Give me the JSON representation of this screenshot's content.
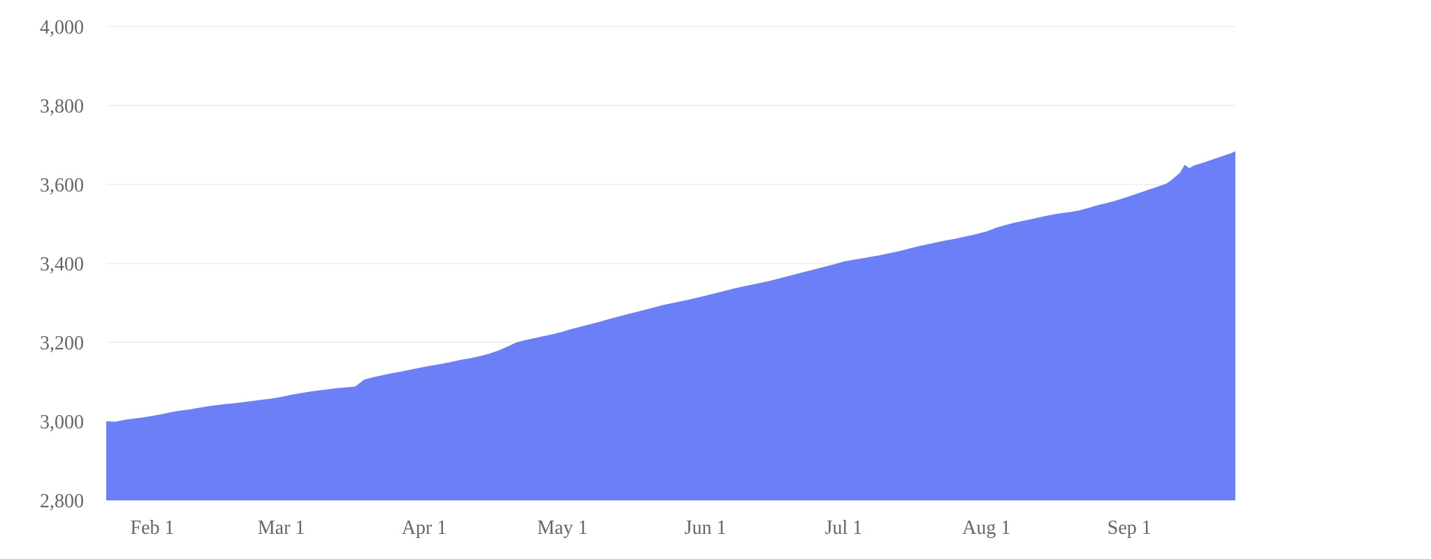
{
  "chart_data": {
    "type": "area",
    "title": "",
    "legend": "none",
    "grid": true,
    "background_color": "#ffffff",
    "colors": {
      "area_fill": "#6b80f6",
      "gridline": "#f2f2f3",
      "tick_text": "#666666"
    },
    "y_axis": {
      "range": [
        2800,
        4000
      ],
      "tick_values": [
        4000,
        3800,
        3600,
        3400,
        3200,
        3000,
        2800
      ],
      "tick_labels": [
        "4,000",
        "3,800",
        "3,600",
        "3,400",
        "3,200",
        "3,000",
        "2,800"
      ]
    },
    "x_axis": {
      "type": "time",
      "total_days": 245,
      "start_label": "Jan 22",
      "end_label": "Sep 24",
      "ticks": [
        {
          "day": 10,
          "label": "Feb 1"
        },
        {
          "day": 38,
          "label": "Mar 1"
        },
        {
          "day": 69,
          "label": "Apr 1"
        },
        {
          "day": 99,
          "label": "May 1"
        },
        {
          "day": 130,
          "label": "Jun 1"
        },
        {
          "day": 160,
          "label": "Jul 1"
        },
        {
          "day": 191,
          "label": "Aug 1"
        },
        {
          "day": 222,
          "label": "Sep 1"
        }
      ]
    },
    "points_format": "[day_offset, date_label, value]",
    "points": [
      [
        0,
        "Jan 22",
        3000
      ],
      [
        2,
        "Jan 24",
        2999
      ],
      [
        4,
        "Jan 26",
        3004
      ],
      [
        6,
        "Jan 28",
        3007
      ],
      [
        8,
        "Jan 30",
        3010
      ],
      [
        10,
        "Feb 1",
        3014
      ],
      [
        12,
        "Feb 3",
        3018
      ],
      [
        14,
        "Feb 5",
        3023
      ],
      [
        16,
        "Feb 7",
        3027
      ],
      [
        18,
        "Feb 9",
        3030
      ],
      [
        20,
        "Feb 11",
        3034
      ],
      [
        22,
        "Feb 13",
        3038
      ],
      [
        24,
        "Feb 15",
        3041
      ],
      [
        26,
        "Feb 17",
        3044
      ],
      [
        28,
        "Feb 19",
        3046
      ],
      [
        30,
        "Feb 21",
        3049
      ],
      [
        32,
        "Feb 23",
        3052
      ],
      [
        34,
        "Feb 25",
        3055
      ],
      [
        36,
        "Feb 27",
        3058
      ],
      [
        38,
        "Mar 1",
        3062
      ],
      [
        40,
        "Mar 3",
        3067
      ],
      [
        42,
        "Mar 5",
        3071
      ],
      [
        44,
        "Mar 7",
        3075
      ],
      [
        46,
        "Mar 9",
        3078
      ],
      [
        48,
        "Mar 11",
        3081
      ],
      [
        50,
        "Mar 13",
        3084
      ],
      [
        52,
        "Mar 15",
        3086
      ],
      [
        54,
        "Mar 17",
        3088
      ],
      [
        55,
        "Mar 18",
        3097
      ],
      [
        56,
        "Mar 19",
        3106
      ],
      [
        58,
        "Mar 21",
        3112
      ],
      [
        60,
        "Mar 23",
        3117
      ],
      [
        62,
        "Mar 25",
        3122
      ],
      [
        64,
        "Mar 27",
        3126
      ],
      [
        66,
        "Mar 29",
        3131
      ],
      [
        69,
        "Apr 1",
        3138
      ],
      [
        71,
        "Apr 3",
        3142
      ],
      [
        73,
        "Apr 5",
        3146
      ],
      [
        75,
        "Apr 7",
        3151
      ],
      [
        77,
        "Apr 9",
        3156
      ],
      [
        79,
        "Apr 11",
        3160
      ],
      [
        81,
        "Apr 13",
        3165
      ],
      [
        83,
        "Apr 15",
        3171
      ],
      [
        85,
        "Apr 17",
        3179
      ],
      [
        87,
        "Apr 19",
        3189
      ],
      [
        89,
        "Apr 21",
        3200
      ],
      [
        91,
        "Apr 23",
        3206
      ],
      [
        93,
        "Apr 25",
        3211
      ],
      [
        95,
        "Apr 27",
        3216
      ],
      [
        97,
        "Apr 29",
        3221
      ],
      [
        99,
        "May 1",
        3227
      ],
      [
        101,
        "May 3",
        3234
      ],
      [
        103,
        "May 5",
        3240
      ],
      [
        105,
        "May 7",
        3246
      ],
      [
        107,
        "May 9",
        3252
      ],
      [
        109,
        "May 11",
        3259
      ],
      [
        111,
        "May 13",
        3265
      ],
      [
        113,
        "May 15",
        3271
      ],
      [
        115,
        "May 17",
        3277
      ],
      [
        117,
        "May 19",
        3283
      ],
      [
        119,
        "May 21",
        3289
      ],
      [
        121,
        "May 23",
        3295
      ],
      [
        123,
        "May 25",
        3300
      ],
      [
        125,
        "May 27",
        3305
      ],
      [
        127,
        "May 29",
        3310
      ],
      [
        130,
        "Jun 1",
        3318
      ],
      [
        132,
        "Jun 3",
        3324
      ],
      [
        134,
        "Jun 5",
        3330
      ],
      [
        136,
        "Jun 7",
        3336
      ],
      [
        138,
        "Jun 9",
        3341
      ],
      [
        140,
        "Jun 11",
        3346
      ],
      [
        142,
        "Jun 13",
        3351
      ],
      [
        144,
        "Jun 15",
        3356
      ],
      [
        146,
        "Jun 17",
        3362
      ],
      [
        148,
        "Jun 19",
        3368
      ],
      [
        150,
        "Jun 21",
        3374
      ],
      [
        152,
        "Jun 23",
        3380
      ],
      [
        154,
        "Jun 25",
        3386
      ],
      [
        156,
        "Jun 27",
        3392
      ],
      [
        158,
        "Jun 29",
        3398
      ],
      [
        160,
        "Jul 1",
        3405
      ],
      [
        162,
        "Jul 3",
        3409
      ],
      [
        164,
        "Jul 5",
        3413
      ],
      [
        166,
        "Jul 7",
        3417
      ],
      [
        168,
        "Jul 9",
        3421
      ],
      [
        170,
        "Jul 11",
        3426
      ],
      [
        172,
        "Jul 13",
        3431
      ],
      [
        174,
        "Jul 15",
        3437
      ],
      [
        176,
        "Jul 17",
        3443
      ],
      [
        178,
        "Jul 19",
        3448
      ],
      [
        180,
        "Jul 21",
        3453
      ],
      [
        182,
        "Jul 23",
        3458
      ],
      [
        184,
        "Jul 25",
        3462
      ],
      [
        186,
        "Jul 27",
        3467
      ],
      [
        188,
        "Jul 29",
        3472
      ],
      [
        191,
        "Aug 1",
        3481
      ],
      [
        193,
        "Aug 3",
        3490
      ],
      [
        195,
        "Aug 5",
        3497
      ],
      [
        197,
        "Aug 7",
        3503
      ],
      [
        199,
        "Aug 9",
        3508
      ],
      [
        201,
        "Aug 11",
        3513
      ],
      [
        203,
        "Aug 13",
        3518
      ],
      [
        205,
        "Aug 15",
        3523
      ],
      [
        207,
        "Aug 17",
        3527
      ],
      [
        209,
        "Aug 19",
        3530
      ],
      [
        211,
        "Aug 21",
        3534
      ],
      [
        213,
        "Aug 23",
        3540
      ],
      [
        215,
        "Aug 25",
        3547
      ],
      [
        217,
        "Aug 27",
        3553
      ],
      [
        219,
        "Aug 29",
        3559
      ],
      [
        222,
        "Sep 1",
        3570
      ],
      [
        224,
        "Sep 3",
        3578
      ],
      [
        226,
        "Sep 5",
        3586
      ],
      [
        228,
        "Sep 7",
        3594
      ],
      [
        230,
        "Sep 9",
        3602
      ],
      [
        231,
        "Sep 10",
        3610
      ],
      [
        233,
        "Sep 12",
        3630
      ],
      [
        234,
        "Sep 13",
        3650
      ],
      [
        235,
        "Sep 14",
        3641
      ],
      [
        236,
        "Sep 15",
        3648
      ],
      [
        238,
        "Sep 17",
        3655
      ],
      [
        240,
        "Sep 19",
        3663
      ],
      [
        242,
        "Sep 21",
        3671
      ],
      [
        244,
        "Sep 23",
        3679
      ],
      [
        245,
        "Sep 24",
        3684
      ]
    ]
  }
}
